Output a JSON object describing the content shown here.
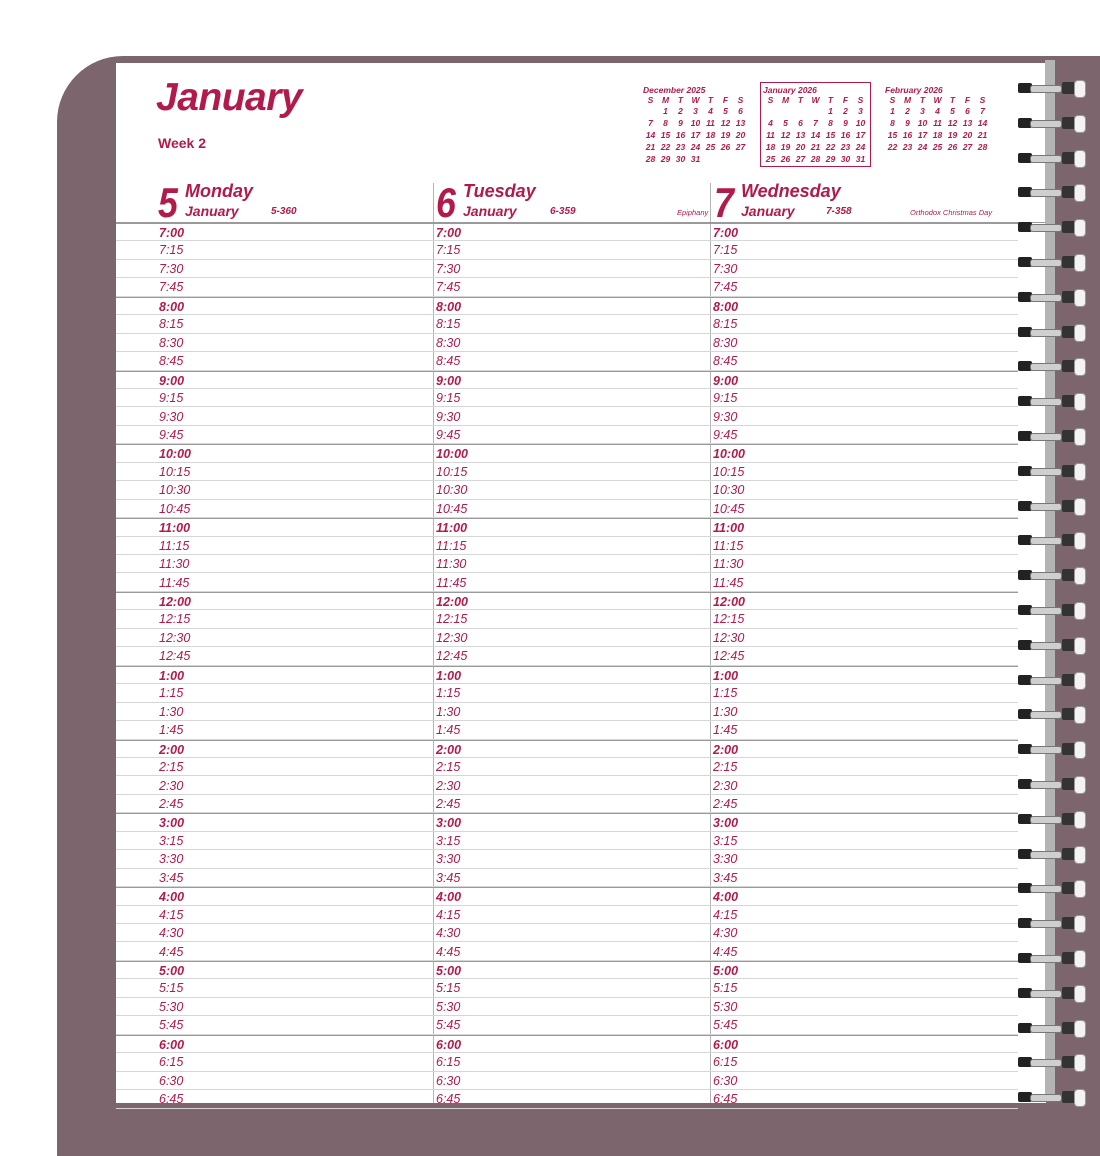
{
  "header": {
    "month": "January",
    "week": "Week 2"
  },
  "mini_calendars": [
    {
      "title": "December 2025",
      "dow": [
        "S",
        "M",
        "T",
        "W",
        "T",
        "F",
        "S"
      ],
      "rows": [
        [
          "",
          "1",
          "2",
          "3",
          "4",
          "5",
          "6"
        ],
        [
          "7",
          "8",
          "9",
          "10",
          "11",
          "12",
          "13"
        ],
        [
          "14",
          "15",
          "16",
          "17",
          "18",
          "19",
          "20"
        ],
        [
          "21",
          "22",
          "23",
          "24",
          "25",
          "26",
          "27"
        ],
        [
          "28",
          "29",
          "30",
          "31",
          "",
          "",
          ""
        ]
      ]
    },
    {
      "title": "January 2026",
      "dow": [
        "S",
        "M",
        "T",
        "W",
        "T",
        "F",
        "S"
      ],
      "rows": [
        [
          "",
          "",
          "",
          "",
          "1",
          "2",
          "3"
        ],
        [
          "4",
          "5",
          "6",
          "7",
          "8",
          "9",
          "10"
        ],
        [
          "11",
          "12",
          "13",
          "14",
          "15",
          "16",
          "17"
        ],
        [
          "18",
          "19",
          "20",
          "21",
          "22",
          "23",
          "24"
        ],
        [
          "25",
          "26",
          "27",
          "28",
          "29",
          "30",
          "31"
        ]
      ]
    },
    {
      "title": "February 2026",
      "dow": [
        "S",
        "M",
        "T",
        "W",
        "T",
        "F",
        "S"
      ],
      "rows": [
        [
          "1",
          "2",
          "3",
          "4",
          "5",
          "6",
          "7"
        ],
        [
          "8",
          "9",
          "10",
          "11",
          "12",
          "13",
          "14"
        ],
        [
          "15",
          "16",
          "17",
          "18",
          "19",
          "20",
          "21"
        ],
        [
          "22",
          "23",
          "24",
          "25",
          "26",
          "27",
          "28"
        ]
      ]
    }
  ],
  "days": [
    {
      "num": "5",
      "name": "Monday",
      "month": "January",
      "ordinal": "5-360",
      "holiday": ""
    },
    {
      "num": "6",
      "name": "Tuesday",
      "month": "January",
      "ordinal": "6-359",
      "holiday": "Epiphany"
    },
    {
      "num": "7",
      "name": "Wednesday",
      "month": "January",
      "ordinal": "7-358",
      "holiday": "Orthodox Christmas Day"
    }
  ],
  "times": [
    "7:00",
    "7:15",
    "7:30",
    "7:45",
    "8:00",
    "8:15",
    "8:30",
    "8:45",
    "9:00",
    "9:15",
    "9:30",
    "9:45",
    "10:00",
    "10:15",
    "10:30",
    "10:45",
    "11:00",
    "11:15",
    "11:30",
    "11:45",
    "12:00",
    "12:15",
    "12:30",
    "12:45",
    "1:00",
    "1:15",
    "1:30",
    "1:45",
    "2:00",
    "2:15",
    "2:30",
    "2:45",
    "3:00",
    "3:15",
    "3:30",
    "3:45",
    "4:00",
    "4:15",
    "4:30",
    "4:45",
    "5:00",
    "5:15",
    "5:30",
    "5:45",
    "6:00",
    "6:15",
    "6:30",
    "6:45"
  ],
  "colors": {
    "accent": "#b21a4b",
    "cover": "#7c656c"
  }
}
